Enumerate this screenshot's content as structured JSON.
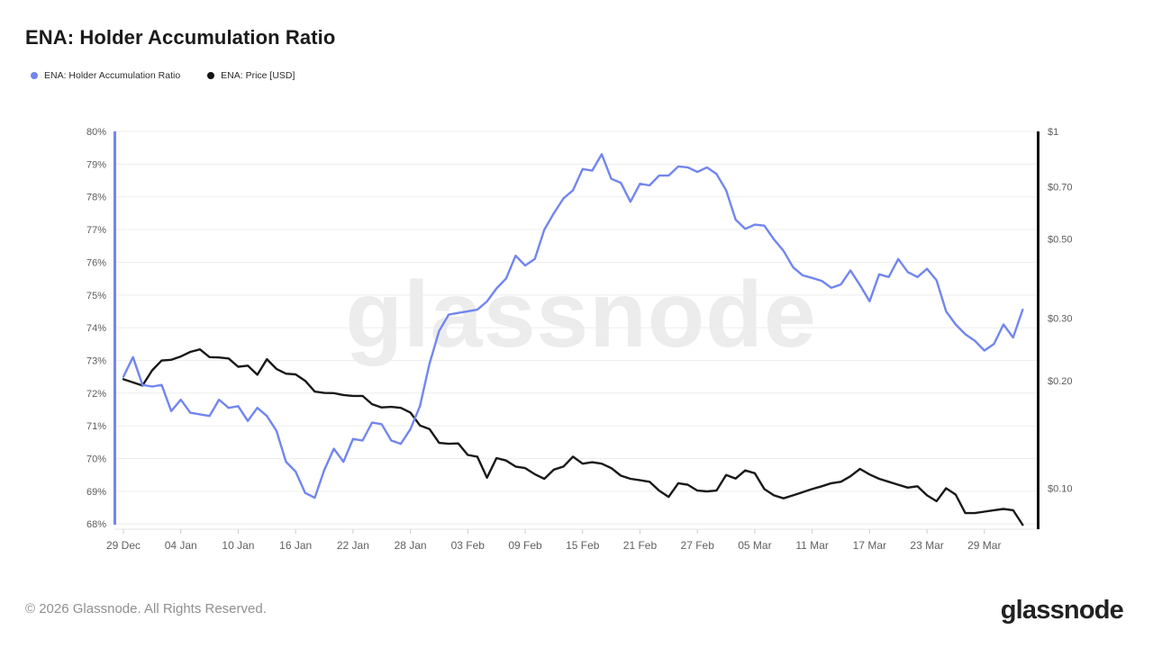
{
  "header": {
    "title": "ENA: Holder Accumulation Ratio"
  },
  "legend": {
    "items": [
      {
        "label": "ENA: Holder Accumulation Ratio",
        "color": "#7186ee"
      },
      {
        "label": "ENA: Price [USD]",
        "color": "#141414"
      }
    ]
  },
  "watermark": "glassnode",
  "footer": {
    "copyright": "© 2026 Glassnode. All Rights Reserved.",
    "brand": "glassnode"
  },
  "chart_data": {
    "type": "line",
    "title": "ENA: Holder Accumulation Ratio",
    "grid": "horizontal",
    "legend_position": "top-left",
    "x_tick_interval_days": 6,
    "x_ticks": [
      "29 Dec",
      "04 Jan",
      "10 Jan",
      "16 Jan",
      "22 Jan",
      "28 Jan",
      "03 Feb",
      "09 Feb",
      "15 Feb",
      "21 Feb",
      "27 Feb",
      "05 Mar",
      "11 Mar",
      "17 Mar",
      "23 Mar",
      "29 Mar"
    ],
    "left_axis": {
      "unit": "%",
      "min": 68,
      "max": 80,
      "scale": "linear",
      "ticks": [
        {
          "label": "80%",
          "value": 80
        },
        {
          "label": "79%",
          "value": 79
        },
        {
          "label": "78%",
          "value": 78
        },
        {
          "label": "77%",
          "value": 77
        },
        {
          "label": "76%",
          "value": 76
        },
        {
          "label": "75%",
          "value": 75
        },
        {
          "label": "74%",
          "value": 74
        },
        {
          "label": "73%",
          "value": 73
        },
        {
          "label": "72%",
          "value": 72
        },
        {
          "label": "71%",
          "value": 71
        },
        {
          "label": "70%",
          "value": 70
        },
        {
          "label": "69%",
          "value": 69
        },
        {
          "label": "68%",
          "value": 68
        }
      ]
    },
    "right_axis": {
      "unit": "USD",
      "scale": "log",
      "ticks": [
        {
          "label": "$1",
          "value": 1
        },
        {
          "label": "$0.70",
          "value": 0.7
        },
        {
          "label": "$0.50",
          "value": 0.5
        },
        {
          "label": "$0.30",
          "value": 0.3
        },
        {
          "label": "$0.20",
          "value": 0.2
        },
        {
          "label": "$0.10",
          "value": 0.1
        }
      ]
    },
    "series": [
      {
        "name": "ENA: Holder Accumulation Ratio",
        "axis": "left",
        "color": "#7186ee",
        "unit": "%",
        "values": [
          72.5,
          73.1,
          72.25,
          72.2,
          72.25,
          71.45,
          71.8,
          71.4,
          71.35,
          71.3,
          71.8,
          71.55,
          71.6,
          71.15,
          71.55,
          71.3,
          70.85,
          69.9,
          69.6,
          68.95,
          68.8,
          69.65,
          70.3,
          69.9,
          70.6,
          70.55,
          71.1,
          71.05,
          70.55,
          70.45,
          70.9,
          71.6,
          72.9,
          73.9,
          74.4,
          74.45,
          74.5,
          74.55,
          74.8,
          75.2,
          75.5,
          76.2,
          75.9,
          76.1,
          77.0,
          77.5,
          77.95,
          78.2,
          78.85,
          78.8,
          79.3,
          78.55,
          78.43,
          77.85,
          78.4,
          78.35,
          78.65,
          78.65,
          78.93,
          78.9,
          78.76,
          78.9,
          78.7,
          78.2,
          77.3,
          77.02,
          77.15,
          77.12,
          76.7,
          76.35,
          75.85,
          75.6,
          75.52,
          75.43,
          75.22,
          75.32,
          75.75,
          75.3,
          74.81,
          75.63,
          75.55,
          76.1,
          75.7,
          75.55,
          75.8,
          75.45,
          74.5,
          74.1,
          73.8,
          73.6,
          73.3,
          73.5,
          74.1,
          73.7,
          74.55
        ]
      },
      {
        "name": "ENA: Price [USD]",
        "axis": "right",
        "color": "#191919",
        "unit": "USD",
        "values": [
          0.202,
          0.198,
          0.194,
          0.214,
          0.228,
          0.229,
          0.234,
          0.241,
          0.245,
          0.233,
          0.2325,
          0.231,
          0.219,
          0.2205,
          0.208,
          0.23,
          0.216,
          0.2095,
          0.2085,
          0.2,
          0.1866,
          0.185,
          0.1848,
          0.1825,
          0.1815,
          0.1815,
          0.172,
          0.1685,
          0.169,
          0.168,
          0.163,
          0.15,
          0.1465,
          0.134,
          0.1332,
          0.1335,
          0.124,
          0.1226,
          0.107,
          0.1215,
          0.1196,
          0.115,
          0.1139,
          0.1095,
          0.1063,
          0.1128,
          0.115,
          0.1226,
          0.1172,
          0.1183,
          0.1172,
          0.1139,
          0.1085,
          0.1063,
          0.1053,
          0.1043,
          0.0985,
          0.0946,
          0.1033,
          0.1023,
          0.0985,
          0.098,
          0.0985,
          0.109,
          0.1065,
          0.1122,
          0.1102,
          0.0995,
          0.0955,
          0.0937,
          0.0955,
          0.0975,
          0.0995,
          0.1013,
          0.1033,
          0.1043,
          0.108,
          0.1133,
          0.1093,
          0.1063,
          0.1043,
          0.1023,
          0.1004,
          0.1013,
          0.0955,
          0.092,
          0.1,
          0.096,
          0.0852,
          0.0852,
          0.086,
          0.0868,
          0.0875,
          0.0868,
          0.079
        ]
      }
    ]
  }
}
